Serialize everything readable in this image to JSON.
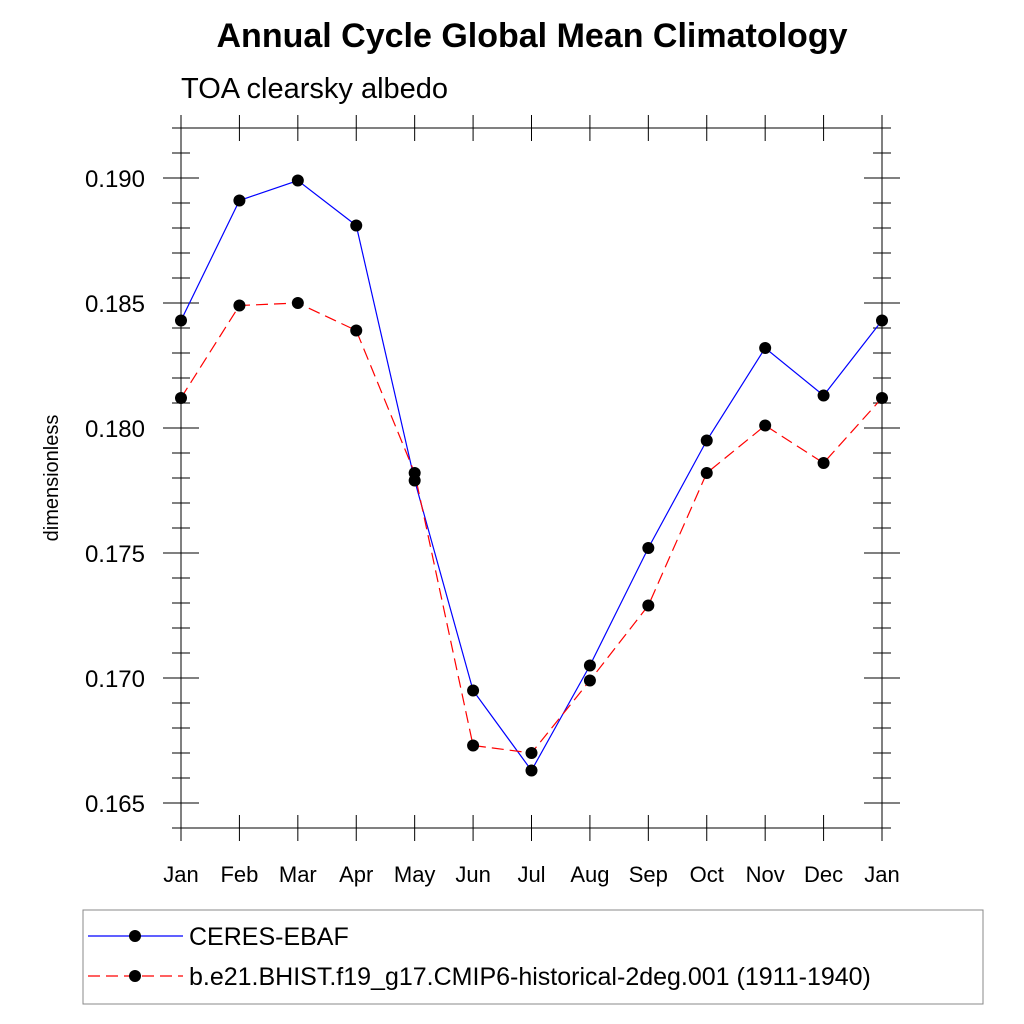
{
  "chart_data": {
    "type": "line",
    "title": "Annual Cycle Global Mean Climatology",
    "subtitle": "TOA clearsky albedo",
    "xlabel": "",
    "ylabel": "dimensionless",
    "categories": [
      "Jan",
      "Feb",
      "Mar",
      "Apr",
      "May",
      "Jun",
      "Jul",
      "Aug",
      "Sep",
      "Oct",
      "Nov",
      "Dec",
      "Jan"
    ],
    "ylim": [
      0.164,
      0.192
    ],
    "yticks": [
      "0.165",
      "0.170",
      "0.175",
      "0.180",
      "0.185",
      "0.190"
    ],
    "ytick_values": [
      0.165,
      0.17,
      0.175,
      0.18,
      0.185,
      0.19
    ],
    "grid": false,
    "legend_position": "bottom",
    "series": [
      {
        "name": "CERES-EBAF",
        "color": "#0000ff",
        "line_style": "solid",
        "marker": "filled-circle",
        "values": [
          0.1843,
          0.1891,
          0.1899,
          0.1881,
          0.1779,
          0.1695,
          0.1663,
          0.1705,
          0.1752,
          0.1795,
          0.1832,
          0.1813,
          0.1843
        ]
      },
      {
        "name": "b.e21.BHIST.f19_g17.CMIP6-historical-2deg.001 (1911-1940)",
        "color": "#ff0000",
        "line_style": "dashed",
        "marker": "filled-circle",
        "values": [
          0.1812,
          0.1849,
          0.185,
          0.1839,
          0.1782,
          0.1673,
          0.167,
          0.1699,
          0.1729,
          0.1782,
          0.1801,
          0.1786,
          0.1812
        ]
      }
    ]
  }
}
